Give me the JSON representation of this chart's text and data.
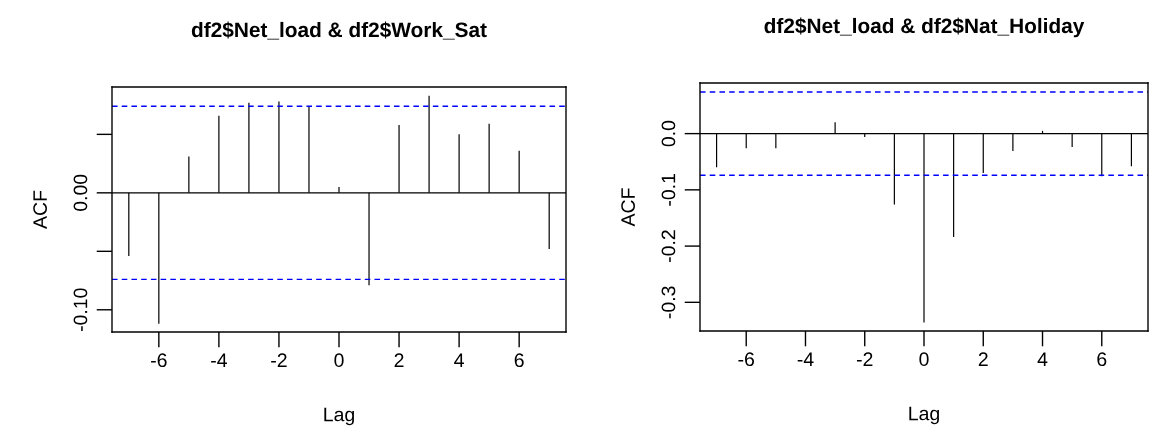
{
  "chart_data": [
    {
      "type": "bar",
      "title": "df2$Net_load & df2$Work_Sat",
      "xlabel": "Lag",
      "ylabel": "ACF",
      "x": [
        -7,
        -6,
        -5,
        -4,
        -3,
        -2,
        -1,
        0,
        1,
        2,
        3,
        4,
        5,
        6,
        7
      ],
      "series": [
        {
          "color": "#000000",
          "values": [
            -0.054,
            -0.112,
            0.031,
            0.066,
            0.077,
            0.078,
            0.074,
            0.005,
            -0.079,
            0.058,
            0.083,
            0.05,
            0.059,
            0.036,
            -0.048
          ]
        }
      ],
      "xlim": [
        -7.56,
        7.56
      ],
      "xticks": [
        -6,
        -4,
        -2,
        0,
        2,
        4,
        6
      ],
      "ylim": [
        -0.119,
        0.0905
      ],
      "yticks": [
        {
          "value": -0.1,
          "label": "-0.10"
        },
        {
          "value": -0.05,
          "label": null
        },
        {
          "value": 0,
          "label": "0.00"
        },
        {
          "value": 0.05,
          "label": null
        }
      ],
      "ref_lines": [
        {
          "axis": "y",
          "value": 0,
          "color": "#000000",
          "line_style": "solid"
        },
        {
          "axis": "y",
          "value": 0.074,
          "color": "#0000ff",
          "line_style": "dashed"
        },
        {
          "axis": "y",
          "value": -0.074,
          "color": "#0000ff",
          "line_style": "dashed"
        }
      ],
      "grid": false,
      "legend": false
    },
    {
      "type": "bar",
      "title": "df2$Net_load & df2$Nat_Holiday",
      "xlabel": "Lag",
      "ylabel": "ACF",
      "x": [
        -7,
        -6,
        -5,
        -4,
        -3,
        -2,
        -1,
        0,
        1,
        2,
        3,
        4,
        5,
        6,
        7
      ],
      "series": [
        {
          "color": "#000000",
          "values": [
            -0.06,
            -0.026,
            -0.026,
            0.001,
            0.02,
            -0.006,
            -0.126,
            -0.336,
            -0.184,
            -0.07,
            -0.031,
            0.005,
            -0.024,
            -0.076,
            -0.058
          ]
        }
      ],
      "xlim": [
        -7.56,
        7.56
      ],
      "xticks": [
        -6,
        -4,
        -2,
        0,
        2,
        4,
        6
      ],
      "ylim": [
        -0.351,
        0.09
      ],
      "yticks": [
        -0.3,
        -0.2,
        -0.1,
        {
          "value": 0,
          "label": "0.0"
        }
      ],
      "ref_lines": [
        {
          "axis": "y",
          "value": 0,
          "color": "#000000",
          "line_style": "solid"
        },
        {
          "axis": "y",
          "value": 0.074,
          "color": "#0000ff",
          "line_style": "dashed"
        },
        {
          "axis": "y",
          "value": -0.074,
          "color": "#0000ff",
          "line_style": "dashed"
        }
      ],
      "grid": false,
      "legend": false
    }
  ]
}
